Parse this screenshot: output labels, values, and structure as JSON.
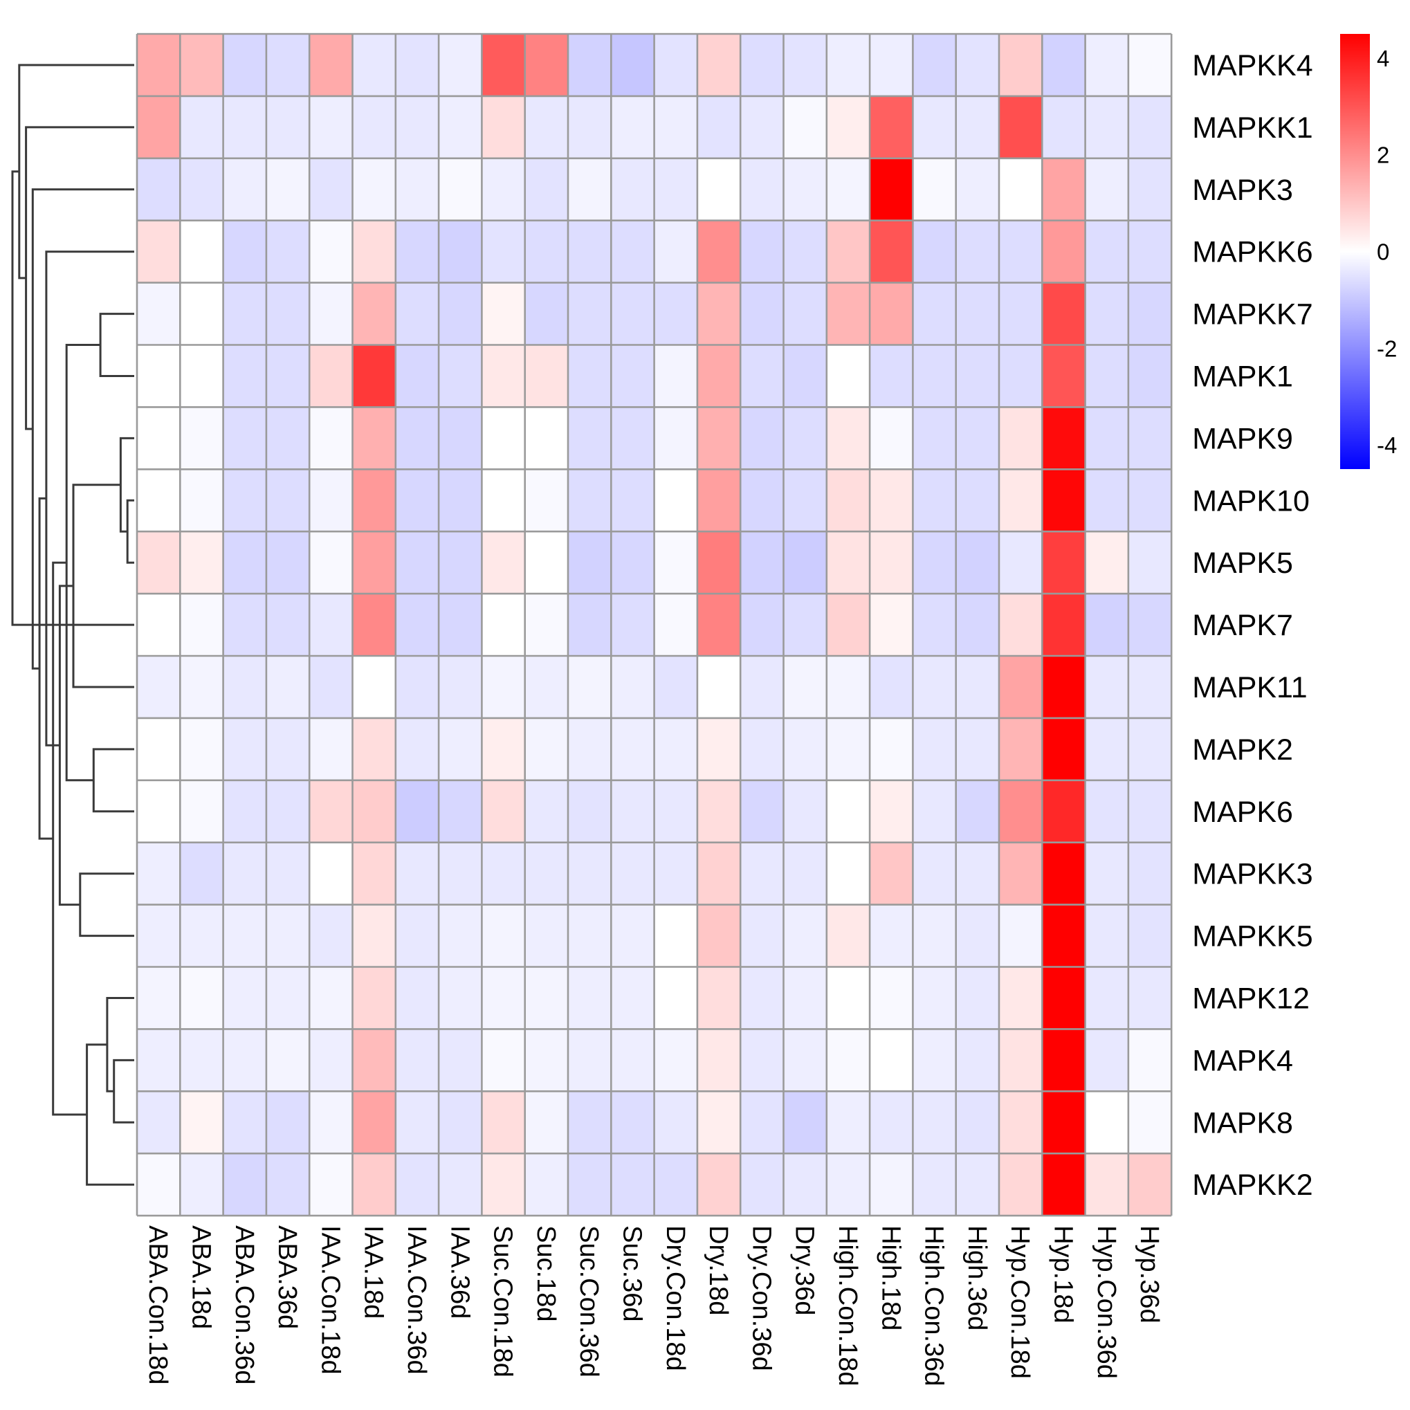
{
  "chart_data": {
    "type": "heatmap",
    "title": "",
    "columns": [
      "ABA.Con.18d",
      "ABA.18d",
      "ABA.Con.36d",
      "ABA.36d",
      "IAA.Con.18d",
      "IAA.18d",
      "IAA.Con.36d",
      "IAA.36d",
      "Suc.Con.18d",
      "Suc.18d",
      "Suc.Con.36d",
      "Suc.36d",
      "Dry.Con.18d",
      "Dry.18d",
      "Dry.Con.36d",
      "Dry.36d",
      "High.Con.18d",
      "High.18d",
      "High.Con.36d",
      "High.36d",
      "Hyp.Con.18d",
      "Hyp.18d",
      "Hyp.Con.36d",
      "Hyp.36d"
    ],
    "rows": [
      "MAPKK4",
      "MAPKK1",
      "MAPK3",
      "MAPKK6",
      "MAPKK7",
      "MAPK1",
      "MAPK9",
      "MAPK10",
      "MAPK5",
      "MAPK7",
      "MAPK11",
      "MAPK2",
      "MAPK6",
      "MAPKK3",
      "MAPKK5",
      "MAPK12",
      "MAPK4",
      "MAPK8",
      "MAPKK2"
    ],
    "values": [
      [
        1.5,
        1.2,
        -0.7,
        -0.6,
        1.5,
        -0.4,
        -0.5,
        -0.3,
        2.9,
        2.2,
        -0.8,
        -1.0,
        -0.5,
        0.8,
        -0.6,
        -0.5,
        -0.3,
        -0.3,
        -0.7,
        -0.5,
        0.9,
        -0.8,
        -0.3,
        -0.1
      ],
      [
        1.6,
        -0.4,
        -0.4,
        -0.4,
        -0.3,
        -0.4,
        -0.4,
        -0.3,
        0.6,
        -0.4,
        -0.4,
        -0.3,
        -0.3,
        -0.5,
        -0.4,
        -0.1,
        0.3,
        2.8,
        -0.4,
        -0.4,
        3.1,
        -0.5,
        -0.4,
        -0.5
      ],
      [
        -0.6,
        -0.5,
        -0.3,
        -0.2,
        -0.5,
        -0.2,
        -0.3,
        -0.1,
        -0.3,
        -0.5,
        -0.2,
        -0.4,
        -0.4,
        0.0,
        -0.4,
        -0.3,
        -0.2,
        4.5,
        -0.1,
        -0.3,
        0.0,
        1.6,
        -0.3,
        -0.5
      ],
      [
        0.6,
        0.0,
        -0.7,
        -0.6,
        -0.1,
        0.6,
        -0.7,
        -0.8,
        -0.5,
        -0.6,
        -0.6,
        -0.6,
        -0.3,
        2.0,
        -0.7,
        -0.6,
        1.0,
        3.0,
        -0.7,
        -0.6,
        -0.6,
        1.8,
        -0.6,
        -0.6
      ],
      [
        -0.2,
        0.0,
        -0.6,
        -0.6,
        -0.2,
        1.3,
        -0.6,
        -0.7,
        0.2,
        -0.7,
        -0.6,
        -0.6,
        -0.6,
        1.3,
        -0.7,
        -0.6,
        1.3,
        1.5,
        -0.6,
        -0.6,
        -0.6,
        3.2,
        -0.6,
        -0.7
      ],
      [
        0.0,
        0.0,
        -0.6,
        -0.6,
        0.7,
        3.5,
        -0.7,
        -0.6,
        0.4,
        0.5,
        -0.6,
        -0.6,
        -0.2,
        1.5,
        -0.6,
        -0.7,
        0.0,
        -0.6,
        -0.6,
        -0.6,
        -0.6,
        3.0,
        -0.6,
        -0.7
      ],
      [
        0.0,
        -0.1,
        -0.6,
        -0.6,
        -0.1,
        1.4,
        -0.7,
        -0.7,
        0.0,
        0.0,
        -0.6,
        -0.6,
        -0.2,
        1.4,
        -0.7,
        -0.6,
        0.4,
        -0.1,
        -0.6,
        -0.6,
        0.5,
        4.3,
        -0.6,
        -0.6
      ],
      [
        0.0,
        -0.1,
        -0.6,
        -0.6,
        -0.2,
        1.8,
        -0.7,
        -0.7,
        0.0,
        -0.1,
        -0.6,
        -0.6,
        0.0,
        1.7,
        -0.7,
        -0.6,
        0.6,
        0.4,
        -0.6,
        -0.6,
        0.4,
        4.4,
        -0.6,
        -0.6
      ],
      [
        0.6,
        0.3,
        -0.7,
        -0.7,
        -0.1,
        1.7,
        -0.7,
        -0.7,
        0.4,
        0.0,
        -0.8,
        -0.7,
        -0.1,
        2.3,
        -0.8,
        -0.9,
        0.5,
        0.4,
        -0.7,
        -0.8,
        -0.4,
        3.4,
        0.3,
        -0.4
      ],
      [
        0.0,
        -0.1,
        -0.6,
        -0.6,
        -0.4,
        2.1,
        -0.7,
        -0.7,
        0.0,
        -0.1,
        -0.7,
        -0.6,
        -0.1,
        2.2,
        -0.7,
        -0.6,
        0.8,
        0.2,
        -0.6,
        -0.7,
        0.6,
        3.6,
        -0.8,
        -0.7
      ],
      [
        -0.3,
        -0.2,
        -0.4,
        -0.3,
        -0.5,
        0.0,
        -0.5,
        -0.4,
        -0.2,
        -0.3,
        -0.2,
        -0.3,
        -0.5,
        0.0,
        -0.4,
        -0.2,
        -0.2,
        -0.5,
        -0.4,
        -0.4,
        1.6,
        4.5,
        -0.4,
        -0.4
      ],
      [
        0.0,
        -0.1,
        -0.4,
        -0.4,
        -0.2,
        0.6,
        -0.4,
        -0.3,
        0.3,
        -0.2,
        -0.3,
        -0.3,
        -0.3,
        0.3,
        -0.4,
        -0.3,
        -0.2,
        -0.1,
        -0.4,
        -0.4,
        1.3,
        4.5,
        -0.4,
        -0.4
      ],
      [
        0.0,
        -0.1,
        -0.5,
        -0.5,
        0.7,
        0.9,
        -0.9,
        -0.7,
        0.6,
        -0.4,
        -0.5,
        -0.4,
        -0.4,
        0.6,
        -0.7,
        -0.4,
        0.0,
        0.3,
        -0.4,
        -0.7,
        2.0,
        3.8,
        -0.5,
        -0.5
      ],
      [
        -0.3,
        -0.6,
        -0.4,
        -0.4,
        0.0,
        0.7,
        -0.4,
        -0.4,
        -0.4,
        -0.4,
        -0.4,
        -0.4,
        -0.4,
        0.8,
        -0.4,
        -0.4,
        0.0,
        1.0,
        -0.4,
        -0.4,
        1.3,
        4.5,
        -0.4,
        -0.5
      ],
      [
        -0.3,
        -0.3,
        -0.3,
        -0.3,
        -0.4,
        0.4,
        -0.4,
        -0.3,
        -0.2,
        -0.3,
        -0.3,
        -0.3,
        0.0,
        1.0,
        -0.4,
        -0.3,
        0.4,
        -0.3,
        -0.3,
        -0.4,
        -0.2,
        4.5,
        -0.4,
        -0.5
      ],
      [
        -0.2,
        -0.1,
        -0.3,
        -0.3,
        -0.2,
        0.7,
        -0.4,
        -0.3,
        -0.2,
        -0.2,
        -0.3,
        -0.3,
        0.0,
        0.6,
        -0.4,
        -0.3,
        0.0,
        -0.1,
        -0.3,
        -0.4,
        0.4,
        4.5,
        -0.4,
        -0.4
      ],
      [
        -0.3,
        -0.3,
        -0.3,
        -0.2,
        -0.3,
        1.2,
        -0.4,
        -0.4,
        -0.1,
        -0.2,
        -0.3,
        -0.3,
        -0.2,
        0.4,
        -0.4,
        -0.3,
        -0.1,
        0.0,
        -0.3,
        -0.4,
        0.5,
        4.5,
        -0.4,
        -0.1
      ],
      [
        -0.4,
        0.2,
        -0.5,
        -0.6,
        -0.2,
        1.6,
        -0.4,
        -0.5,
        0.6,
        -0.2,
        -0.6,
        -0.6,
        -0.4,
        0.3,
        -0.5,
        -0.8,
        -0.3,
        -0.4,
        -0.4,
        -0.5,
        0.6,
        4.5,
        0.0,
        -0.1
      ],
      [
        -0.1,
        -0.3,
        -0.7,
        -0.6,
        -0.1,
        0.9,
        -0.5,
        -0.4,
        0.4,
        -0.3,
        -0.6,
        -0.6,
        -0.6,
        0.8,
        -0.5,
        -0.4,
        -0.3,
        -0.2,
        -0.4,
        -0.4,
        0.7,
        4.5,
        0.5,
        0.9
      ]
    ],
    "color_scale": {
      "min": -4.5,
      "max": 4.5,
      "low_color": "#0000ff",
      "mid_color": "#ffffff",
      "high_color": "#ff0000",
      "ticks": [
        "4",
        "2",
        "0",
        "-2",
        "-4"
      ],
      "tick_values": [
        4,
        2,
        0,
        -2,
        -4
      ]
    },
    "dendrogram": {
      "side": "left",
      "merges": [
        [
          7,
          8
        ],
        [
          6,
          19
        ],
        [
          16,
          17
        ],
        [
          15,
          21
        ],
        [
          4,
          5
        ],
        [
          11,
          12
        ],
        [
          18,
          22
        ],
        [
          13,
          14
        ],
        [
          10,
          20
        ],
        [
          23,
          24
        ],
        [
          26,
          27
        ],
        [
          25,
          28
        ],
        [
          3,
          29
        ],
        [
          30,
          31
        ],
        [
          2,
          32
        ],
        [
          1,
          33
        ],
        [
          0,
          34
        ],
        [
          9,
          35
        ]
      ]
    },
    "grid_color": "#9a9a9a"
  }
}
